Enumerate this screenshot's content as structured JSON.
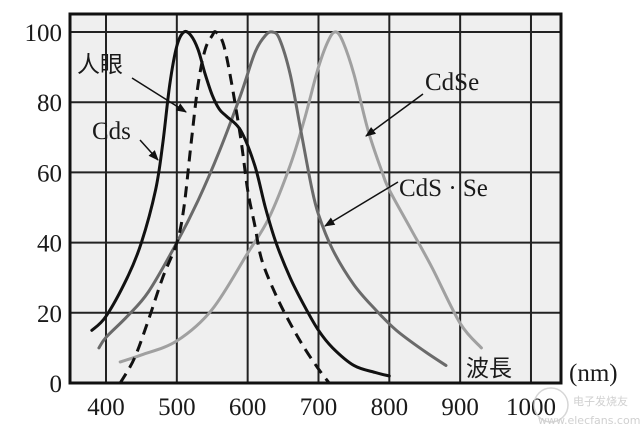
{
  "chart_data": {
    "type": "line",
    "title": "",
    "xlabel": "波長 (nm)",
    "ylabel": "",
    "xlim": [
      350,
      1020
    ],
    "ylim": [
      0,
      105
    ],
    "x_ticks": [
      400,
      500,
      600,
      700,
      800,
      900,
      1000
    ],
    "y_ticks": [
      0,
      20,
      40,
      60,
      80,
      100
    ],
    "x_tick_labels": [
      "400",
      "500",
      "600",
      "700",
      "800",
      "900",
      "1000"
    ],
    "y_tick_labels": [
      "0",
      "20",
      "40",
      "60",
      "80",
      "100"
    ],
    "grid": true,
    "legend": "annotations with arrows",
    "series": [
      {
        "name": "Cds",
        "style": "solid",
        "color": "#111111",
        "x": [
          380,
          400,
          430,
          450,
          470,
          480,
          490,
          500,
          510,
          520,
          530,
          540,
          550,
          560,
          570,
          590,
          610,
          625,
          640,
          660,
          680,
          700,
          720,
          750,
          780,
          800
        ],
        "y": [
          15,
          19,
          30,
          40,
          55,
          68,
          85,
          96,
          100,
          99,
          95,
          88,
          82,
          78,
          76,
          72,
          62,
          50,
          40,
          30,
          22,
          15,
          10,
          5,
          3,
          2
        ]
      },
      {
        "name": "人眼",
        "style": "dashed",
        "color": "#111111",
        "x": [
          420,
          440,
          460,
          480,
          500,
          510,
          520,
          530,
          540,
          550,
          555,
          565,
          575,
          590,
          600,
          610,
          620,
          640,
          660,
          680,
          700,
          715
        ],
        "y": [
          0,
          7,
          18,
          30,
          40,
          50,
          68,
          85,
          95,
          99,
          100,
          97,
          88,
          70,
          55,
          45,
          35,
          25,
          17,
          10,
          4,
          0
        ]
      },
      {
        "name": "CdS·Se",
        "style": "solid",
        "color": "#6a6a6a",
        "x": [
          390,
          400,
          430,
          460,
          500,
          530,
          560,
          590,
          610,
          625,
          635,
          645,
          660,
          675,
          690,
          700,
          720,
          750,
          780,
          810,
          850,
          880
        ],
        "y": [
          10,
          13,
          19,
          26,
          40,
          52,
          66,
          82,
          94,
          99,
          100,
          98,
          88,
          72,
          56,
          48,
          38,
          28,
          21,
          15,
          9,
          5
        ]
      },
      {
        "name": "CdSe",
        "style": "solid",
        "color": "#a0a0a0",
        "x": [
          420,
          450,
          500,
          550,
          600,
          630,
          660,
          680,
          700,
          715,
          725,
          735,
          750,
          770,
          790,
          800,
          830,
          860,
          900,
          930
        ],
        "y": [
          6,
          8,
          12,
          21,
          37,
          47,
          62,
          75,
          90,
          98,
          100,
          97,
          88,
          72,
          60,
          55,
          44,
          33,
          17,
          10
        ]
      }
    ],
    "annotations": [
      {
        "text": "人眼",
        "target_series": "人眼"
      },
      {
        "text": "Cds",
        "target_series": "Cds"
      },
      {
        "text": "CdSe",
        "target_series": "CdSe"
      },
      {
        "text": "CdS · Se",
        "target_series": "CdS·Se"
      },
      {
        "text": "波長",
        "role": "x-axis label"
      },
      {
        "text": "(nm)",
        "role": "x-axis unit"
      }
    ]
  },
  "labels": {
    "eye": "人眼",
    "cds": "Cds",
    "cdse": "CdSe",
    "cdsse": "CdS · Se",
    "wavelength": "波長",
    "unit": "(nm)",
    "watermark_cn": "电子发烧友",
    "watermark_url": "www.elecfans.com"
  }
}
